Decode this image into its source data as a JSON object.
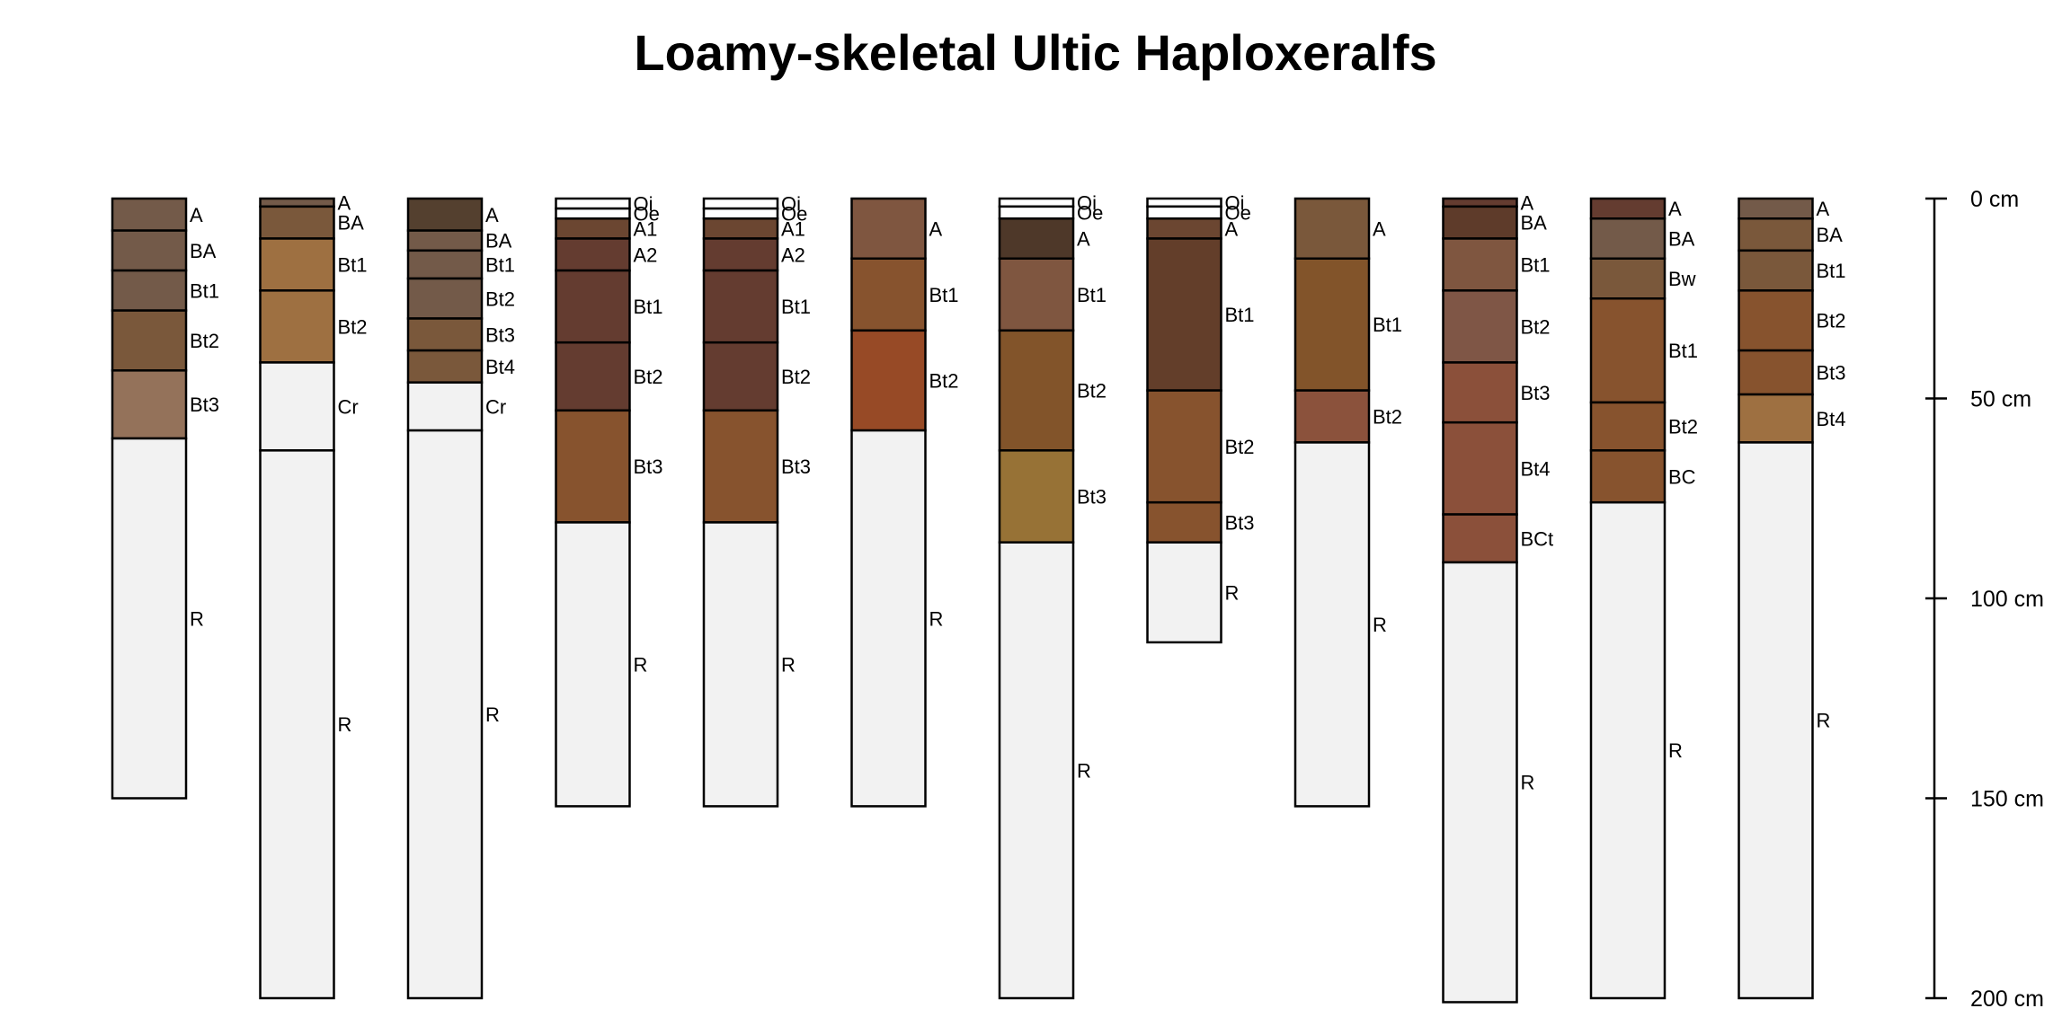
{
  "chart_data": {
    "type": "soil-profile",
    "title": "Loamy-skeletal Ultic Haploxeralfs",
    "depth_unit": "cm",
    "y_range": [
      0,
      200
    ],
    "depth_axis": {
      "ticks": [
        0,
        50,
        100,
        150,
        200
      ],
      "tick_labels": [
        "0 cm",
        "50 cm",
        "100 cm",
        "150 cm",
        "200 cm"
      ]
    },
    "profiles": [
      {
        "horizons": [
          {
            "name": "A",
            "top": 0,
            "bottom": 8,
            "color": "#735A49"
          },
          {
            "name": "BA",
            "top": 8,
            "bottom": 18,
            "color": "#735A49"
          },
          {
            "name": "Bt1",
            "top": 18,
            "bottom": 28,
            "color": "#735A49"
          },
          {
            "name": "Bt2",
            "top": 28,
            "bottom": 43,
            "color": "#7A583B"
          },
          {
            "name": "Bt3",
            "top": 43,
            "bottom": 60,
            "color": "#94725A"
          },
          {
            "name": "R",
            "top": 60,
            "bottom": 150,
            "color": "#F2F2F2"
          }
        ]
      },
      {
        "horizons": [
          {
            "name": "A",
            "top": 0,
            "bottom": 2,
            "color": "#735A49"
          },
          {
            "name": "BA",
            "top": 2,
            "bottom": 10,
            "color": "#7A583B"
          },
          {
            "name": "Bt1",
            "top": 10,
            "bottom": 23,
            "color": "#9E7041"
          },
          {
            "name": "Bt2",
            "top": 23,
            "bottom": 41,
            "color": "#9E7041"
          },
          {
            "name": "Cr",
            "top": 41,
            "bottom": 63,
            "color": "#F2F2F2"
          },
          {
            "name": "R",
            "top": 63,
            "bottom": 200,
            "color": "#F2F2F2"
          }
        ]
      },
      {
        "horizons": [
          {
            "name": "A",
            "top": 0,
            "bottom": 8,
            "color": "#54402F"
          },
          {
            "name": "BA",
            "top": 8,
            "bottom": 13,
            "color": "#735A49"
          },
          {
            "name": "Bt1",
            "top": 13,
            "bottom": 20,
            "color": "#735A49"
          },
          {
            "name": "Bt2",
            "top": 20,
            "bottom": 30,
            "color": "#735A49"
          },
          {
            "name": "Bt3",
            "top": 30,
            "bottom": 38,
            "color": "#7A583B"
          },
          {
            "name": "Bt4",
            "top": 38,
            "bottom": 46,
            "color": "#7A583B"
          },
          {
            "name": "Cr",
            "top": 46,
            "bottom": 58,
            "color": "#F2F2F2"
          },
          {
            "name": "R",
            "top": 58,
            "bottom": 200,
            "color": "#F2F2F2"
          }
        ]
      },
      {
        "horizons": [
          {
            "name": "Oi",
            "top": 0,
            "bottom": 2.5,
            "color": "#FFFFFF"
          },
          {
            "name": "Oe",
            "top": 2.5,
            "bottom": 5,
            "color": "#FFFFFF"
          },
          {
            "name": "A1",
            "top": 5,
            "bottom": 10,
            "color": "#6B4631"
          },
          {
            "name": "A2",
            "top": 10,
            "bottom": 18,
            "color": "#643C30"
          },
          {
            "name": "Bt1",
            "top": 18,
            "bottom": 36,
            "color": "#643C30"
          },
          {
            "name": "Bt2",
            "top": 36,
            "bottom": 53,
            "color": "#643C30"
          },
          {
            "name": "Bt3",
            "top": 53,
            "bottom": 81,
            "color": "#87532E"
          },
          {
            "name": "R",
            "top": 81,
            "bottom": 152,
            "color": "#F2F2F2"
          }
        ]
      },
      {
        "horizons": [
          {
            "name": "Oi",
            "top": 0,
            "bottom": 2.5,
            "color": "#FFFFFF"
          },
          {
            "name": "Oe",
            "top": 2.5,
            "bottom": 5,
            "color": "#FFFFFF"
          },
          {
            "name": "A1",
            "top": 5,
            "bottom": 10,
            "color": "#6B4631"
          },
          {
            "name": "A2",
            "top": 10,
            "bottom": 18,
            "color": "#643C30"
          },
          {
            "name": "Bt1",
            "top": 18,
            "bottom": 36,
            "color": "#643C30"
          },
          {
            "name": "Bt2",
            "top": 36,
            "bottom": 53,
            "color": "#643C30"
          },
          {
            "name": "Bt3",
            "top": 53,
            "bottom": 81,
            "color": "#87532E"
          },
          {
            "name": "R",
            "top": 81,
            "bottom": 152,
            "color": "#F2F2F2"
          }
        ]
      },
      {
        "horizons": [
          {
            "name": "A",
            "top": 0,
            "bottom": 15,
            "color": "#7F5640"
          },
          {
            "name": "Bt1",
            "top": 15,
            "bottom": 33,
            "color": "#87532E"
          },
          {
            "name": "Bt2",
            "top": 33,
            "bottom": 58,
            "color": "#974A26"
          },
          {
            "name": "R",
            "top": 58,
            "bottom": 152,
            "color": "#F2F2F2"
          }
        ]
      },
      {
        "horizons": [
          {
            "name": "Oi",
            "top": 0,
            "bottom": 2,
            "color": "#FFFFFF"
          },
          {
            "name": "Oe",
            "top": 2,
            "bottom": 5,
            "color": "#FFFFFF"
          },
          {
            "name": "A",
            "top": 5,
            "bottom": 15,
            "color": "#4E3829"
          },
          {
            "name": "Bt1",
            "top": 15,
            "bottom": 33,
            "color": "#7F5640"
          },
          {
            "name": "Bt2",
            "top": 33,
            "bottom": 63,
            "color": "#82542A"
          },
          {
            "name": "Bt3",
            "top": 63,
            "bottom": 86,
            "color": "#977236"
          },
          {
            "name": "R",
            "top": 86,
            "bottom": 200,
            "color": "#F2F2F2"
          }
        ]
      },
      {
        "horizons": [
          {
            "name": "Oi",
            "top": 0,
            "bottom": 2,
            "color": "#FFFFFF"
          },
          {
            "name": "Oe",
            "top": 2,
            "bottom": 5,
            "color": "#FFFFFF"
          },
          {
            "name": "A",
            "top": 5,
            "bottom": 10,
            "color": "#6B4631"
          },
          {
            "name": "Bt1",
            "top": 10,
            "bottom": 48,
            "color": "#633E2A"
          },
          {
            "name": "Bt2",
            "top": 48,
            "bottom": 76,
            "color": "#87532E"
          },
          {
            "name": "Bt3",
            "top": 76,
            "bottom": 86,
            "color": "#87532E"
          },
          {
            "name": "R",
            "top": 86,
            "bottom": 111,
            "color": "#F2F2F2"
          }
        ]
      },
      {
        "horizons": [
          {
            "name": "A",
            "top": 0,
            "bottom": 15,
            "color": "#7A583B"
          },
          {
            "name": "Bt1",
            "top": 15,
            "bottom": 48,
            "color": "#82542A"
          },
          {
            "name": "Bt2",
            "top": 48,
            "bottom": 61,
            "color": "#8B523C"
          },
          {
            "name": "R",
            "top": 61,
            "bottom": 152,
            "color": "#F2F2F2"
          }
        ]
      },
      {
        "horizons": [
          {
            "name": "A",
            "top": 0,
            "bottom": 2,
            "color": "#643C30"
          },
          {
            "name": "BA",
            "top": 2,
            "bottom": 10,
            "color": "#5E3B2A"
          },
          {
            "name": "Bt1",
            "top": 10,
            "bottom": 23,
            "color": "#7F5640"
          },
          {
            "name": "Bt2",
            "top": 23,
            "bottom": 41,
            "color": "#7F5646"
          },
          {
            "name": "Bt3",
            "top": 41,
            "bottom": 56,
            "color": "#8B503A"
          },
          {
            "name": "Bt4",
            "top": 56,
            "bottom": 79,
            "color": "#8B503A"
          },
          {
            "name": "BCt",
            "top": 79,
            "bottom": 91,
            "color": "#8B503A"
          },
          {
            "name": "R",
            "top": 91,
            "bottom": 201,
            "color": "#F2F2F2"
          }
        ]
      },
      {
        "horizons": [
          {
            "name": "A",
            "top": 0,
            "bottom": 5,
            "color": "#643C30"
          },
          {
            "name": "BA",
            "top": 5,
            "bottom": 15,
            "color": "#735A49"
          },
          {
            "name": "Bw",
            "top": 15,
            "bottom": 25,
            "color": "#7A583B"
          },
          {
            "name": "Bt1",
            "top": 25,
            "bottom": 51,
            "color": "#87532E"
          },
          {
            "name": "Bt2",
            "top": 51,
            "bottom": 63,
            "color": "#87532E"
          },
          {
            "name": "BC",
            "top": 63,
            "bottom": 76,
            "color": "#87532E"
          },
          {
            "name": "R",
            "top": 76,
            "bottom": 200,
            "color": "#F2F2F2"
          }
        ]
      },
      {
        "horizons": [
          {
            "name": "A",
            "top": 0,
            "bottom": 5,
            "color": "#735A49"
          },
          {
            "name": "BA",
            "top": 5,
            "bottom": 13,
            "color": "#7A583B"
          },
          {
            "name": "Bt1",
            "top": 13,
            "bottom": 23,
            "color": "#7A583B"
          },
          {
            "name": "Bt2",
            "top": 23,
            "bottom": 38,
            "color": "#87532E"
          },
          {
            "name": "Bt3",
            "top": 38,
            "bottom": 49,
            "color": "#87532E"
          },
          {
            "name": "Bt4",
            "top": 49,
            "bottom": 61,
            "color": "#9E7041"
          },
          {
            "name": "R",
            "top": 61,
            "bottom": 200,
            "color": "#F2F2F2"
          }
        ]
      }
    ]
  }
}
